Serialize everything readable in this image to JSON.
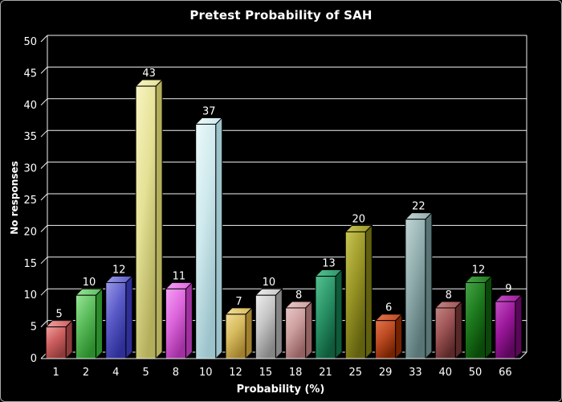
{
  "chart_data": {
    "type": "bar",
    "style": "3d-column",
    "title": "Pretest Probability of SAH",
    "xlabel": "Probability (%)",
    "ylabel": "No responses",
    "categories": [
      "1",
      "2",
      "4",
      "5",
      "8",
      "10",
      "12",
      "15",
      "18",
      "21",
      "25",
      "29",
      "33",
      "40",
      "50",
      "66"
    ],
    "values": [
      5,
      10,
      12,
      43,
      11,
      37,
      7,
      10,
      8,
      13,
      20,
      6,
      22,
      8,
      12,
      9
    ],
    "ylim": [
      0,
      50
    ],
    "ytick_step": 5,
    "grid": true,
    "legend": "none",
    "colors": {
      "background": "#000000",
      "text": "#ffffff",
      "gridline": "#f2f2f2",
      "wall_outline": "#f2f2f2",
      "bar_outline": "#000000",
      "frame_border": "#a8a8a8"
    },
    "bar_colors": [
      {
        "light": "#f0a0a0",
        "base": "#cd5f5f",
        "dark": "#8f3a3a"
      },
      {
        "light": "#98e698",
        "base": "#5bbb5b",
        "dark": "#2b8a2b"
      },
      {
        "light": "#9a9ae8",
        "base": "#5a5ac8",
        "dark": "#2e2e96"
      },
      {
        "light": "#f8f6c2",
        "base": "#e4e094",
        "dark": "#b2ae5c"
      },
      {
        "light": "#f6a0f6",
        "base": "#dd66dd",
        "dark": "#a030a0"
      },
      {
        "light": "#ecfafa",
        "base": "#cde8ec",
        "dark": "#9cc2ca"
      },
      {
        "light": "#f2de96",
        "base": "#d6ba5e",
        "dark": "#a0802e"
      },
      {
        "light": "#eeeeee",
        "base": "#c4c4c4",
        "dark": "#848484"
      },
      {
        "light": "#eac6c6",
        "base": "#cc9e9e",
        "dark": "#926060"
      },
      {
        "light": "#56c290",
        "base": "#2a9468",
        "dark": "#0f5a3a"
      },
      {
        "light": "#cac654",
        "base": "#9a9626",
        "dark": "#61600f"
      },
      {
        "light": "#e2744a",
        "base": "#bc4a22",
        "dark": "#742202"
      },
      {
        "light": "#c2d6d6",
        "base": "#8fabab",
        "dark": "#587474"
      },
      {
        "light": "#c48484",
        "base": "#9e5454",
        "dark": "#5a2828"
      },
      {
        "light": "#48a448",
        "base": "#1d7a1d",
        "dark": "#094809"
      },
      {
        "light": "#c250c2",
        "base": "#9c189c",
        "dark": "#5a075a"
      }
    ]
  }
}
